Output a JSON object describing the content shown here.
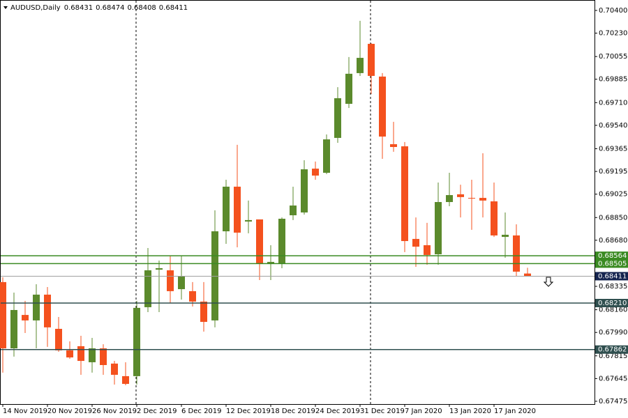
{
  "chart_data": {
    "type": "candlestick",
    "title": "AUDUSD,Daily",
    "categories": [
      "14 Nov 2019",
      null,
      null,
      null,
      "20 Nov 2019",
      null,
      null,
      null,
      "26 Nov 2019",
      null,
      null,
      null,
      "2 Dec 2019",
      null,
      null,
      null,
      "6 Dec 2019",
      null,
      null,
      null,
      "12 Dec 2019",
      null,
      null,
      null,
      "18 Dec 2019",
      null,
      null,
      null,
      "24 Dec 2019",
      null,
      null,
      null,
      "31 Dec 2019",
      null,
      null,
      null,
      "7 Jan 2020",
      null,
      null,
      null,
      "13 Jan 2020",
      null,
      null,
      null,
      "17 Jan 2020",
      null,
      null,
      null
    ],
    "open": [
      0.68367,
      0.67871,
      0.68121,
      0.6808,
      0.68273,
      0.68017,
      0.67856,
      0.67887,
      0.67767,
      0.67871,
      0.67757,
      0.67663,
      0.67663,
      0.68179,
      0.6846,
      0.68455,
      0.68314,
      0.68299,
      0.68221,
      0.6808,
      0.68747,
      0.69081,
      0.6882,
      0.68836,
      0.68507,
      0.68507,
      0.68867,
      0.68888,
      0.69216,
      0.69185,
      0.69446,
      0.69701,
      0.69931,
      0.7015,
      0.69905,
      0.69399,
      0.69383,
      0.6869,
      0.68643,
      0.68575,
      0.68966,
      0.69024,
      0.68997,
      0.68997,
      0.68971,
      0.68705,
      0.68716,
      0.68431
    ],
    "high": [
      0.68403,
      0.68288,
      0.68226,
      0.68351,
      0.6833,
      0.68106,
      0.67923,
      0.67965,
      0.67949,
      0.67902,
      0.67777,
      0.67767,
      0.68226,
      0.68622,
      0.68528,
      0.68565,
      0.68565,
      0.68367,
      0.68367,
      0.68904,
      0.69133,
      0.69394,
      0.68977,
      0.68836,
      0.68643,
      0.68851,
      0.69081,
      0.69279,
      0.69269,
      0.69472,
      0.69826,
      0.70051,
      0.70322,
      0.70155,
      0.69931,
      0.69566,
      0.69415,
      0.68851,
      0.6881,
      0.69112,
      0.69185,
      0.69096,
      0.69133,
      0.69331,
      0.69112,
      0.68888,
      0.68799,
      0.68474
    ],
    "low": [
      0.67689,
      0.67809,
      0.67986,
      0.67871,
      0.67882,
      0.67845,
      0.67793,
      0.67673,
      0.67689,
      0.67673,
      0.676,
      0.67595,
      0.676,
      0.68142,
      0.68142,
      0.6821,
      0.68236,
      0.68184,
      0.67996,
      0.68028,
      0.68653,
      0.68627,
      0.68732,
      0.68382,
      0.68382,
      0.68471,
      0.68831,
      0.68872,
      0.69133,
      0.69175,
      0.69409,
      0.6967,
      0.6991,
      0.69774,
      0.69289,
      0.69342,
      0.68591,
      0.68481,
      0.68497,
      0.68497,
      0.68935,
      0.68851,
      0.68758,
      0.68851,
      0.68705,
      0.68549,
      0.68413,
      0.68408
    ],
    "close": [
      0.67871,
      0.68158,
      0.6808,
      0.68273,
      0.68028,
      0.67856,
      0.67803,
      0.67777,
      0.67871,
      0.67746,
      0.67673,
      0.67605,
      0.68174,
      0.68455,
      0.68471,
      0.68299,
      0.68408,
      0.68221,
      0.68069,
      0.68747,
      0.69081,
      0.68737,
      0.68831,
      0.68502,
      0.68518,
      0.68841,
      0.6894,
      0.69211,
      0.69164,
      0.69435,
      0.69743,
      0.69926,
      0.70045,
      0.6991,
      0.69456,
      0.69378,
      0.68674,
      0.68632,
      0.6857,
      0.68966,
      0.69018,
      0.69003,
      0.68995,
      0.68977,
      0.68716,
      0.68721,
      0.68445,
      0.68411
    ],
    "up_color": "#5b8a2c",
    "down_color": "#f4511e",
    "ylim": [
      0.67454,
      0.70452
    ],
    "yticks": [
      {
        "value": 0.704,
        "label": "0.70400"
      },
      {
        "value": 0.7023,
        "label": "0.70230"
      },
      {
        "value": 0.70055,
        "label": "0.70055"
      },
      {
        "value": 0.69885,
        "label": "0.69885"
      },
      {
        "value": 0.6971,
        "label": "0.69710"
      },
      {
        "value": 0.6954,
        "label": "0.69540"
      },
      {
        "value": 0.69365,
        "label": "0.69365"
      },
      {
        "value": 0.69195,
        "label": "0.69195"
      },
      {
        "value": 0.69025,
        "label": "0.69025"
      },
      {
        "value": 0.6885,
        "label": "0.68850"
      },
      {
        "value": 0.6868,
        "label": "0.68680"
      },
      {
        "value": 0.68335,
        "label": "0.68335"
      },
      {
        "value": 0.6816,
        "label": "0.68160"
      },
      {
        "value": 0.6799,
        "label": "0.67990"
      },
      {
        "value": 0.67815,
        "label": "0.67815"
      },
      {
        "value": 0.67645,
        "label": "0.67645"
      },
      {
        "value": 0.67475,
        "label": "0.67475"
      }
    ],
    "hlines": [
      {
        "value": 0.68564,
        "label": "0.68564",
        "color": "#3a8a22"
      },
      {
        "value": 0.68505,
        "label": "0.68505",
        "color": "#3a8a22"
      },
      {
        "value": 0.6821,
        "label": "0.68210",
        "color": "#2f4f4f"
      },
      {
        "value": 0.67862,
        "label": "0.67862",
        "color": "#2f4f4f"
      }
    ],
    "last_price_color": "#15244f",
    "grid": false
  }
}
